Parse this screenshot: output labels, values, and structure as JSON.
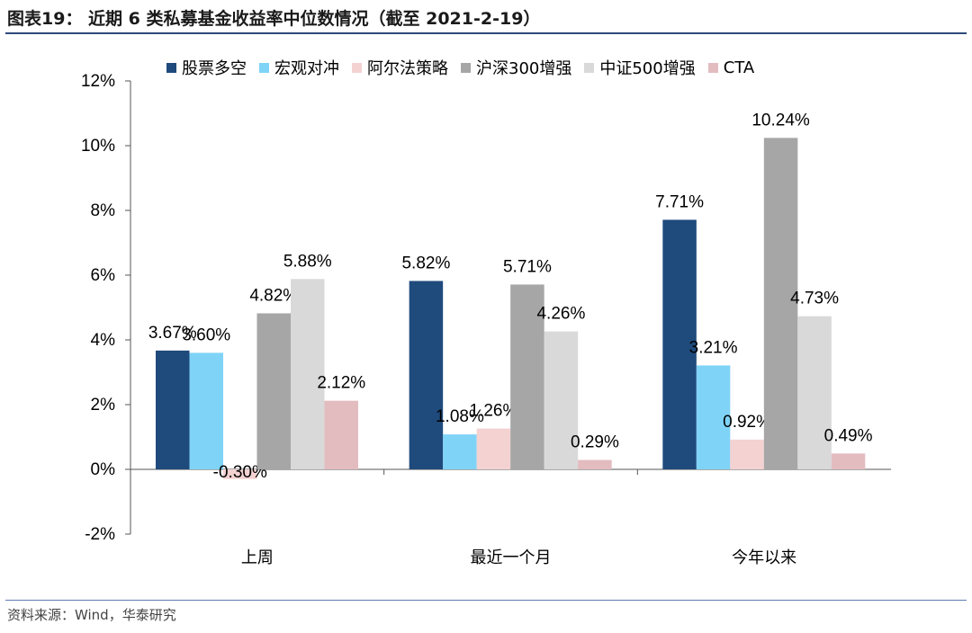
{
  "title": "图表19：  近期 6 类私募基金收益率中位数情况（截至 2021-2-19）",
  "source": "资料来源：Wind，华泰研究",
  "chart_data": {
    "type": "bar",
    "categories": [
      "上周",
      "最近一个月",
      "今年以来"
    ],
    "series": [
      {
        "name": "股票多空",
        "color": "#1f4a7c",
        "values": [
          3.67,
          5.82,
          7.71
        ],
        "labels": [
          "3.67%",
          "5.82%",
          "7.71%"
        ]
      },
      {
        "name": "宏观对冲",
        "color": "#7fd3f7",
        "values": [
          3.6,
          1.08,
          3.21
        ],
        "labels": [
          "3.60%",
          "1.08%",
          "3.21%"
        ]
      },
      {
        "name": "阿尔法策略",
        "color": "#f4d2d2",
        "values": [
          -0.3,
          1.26,
          0.92
        ],
        "labels": [
          "-0.30%",
          "1.26%",
          "0.92%"
        ]
      },
      {
        "name": "沪深300增强",
        "color": "#a6a6a6",
        "values": [
          4.82,
          5.71,
          10.24
        ],
        "labels": [
          "4.82%",
          "5.71%",
          "10.24%"
        ]
      },
      {
        "name": "中证500增强",
        "color": "#d9d9d9",
        "values": [
          5.88,
          4.26,
          4.73
        ],
        "labels": [
          "5.88%",
          "4.26%",
          "4.73%"
        ]
      },
      {
        "name": "CTA",
        "color": "#e3bcc0",
        "values": [
          2.12,
          0.29,
          0.49
        ],
        "labels": [
          "2.12%",
          "0.29%",
          "0.49%"
        ]
      }
    ],
    "ylim": [
      -2,
      12
    ],
    "yticks": [
      "-2%",
      "0%",
      "2%",
      "4%",
      "6%",
      "8%",
      "10%",
      "12%"
    ],
    "ytick_values": [
      -2,
      0,
      2,
      4,
      6,
      8,
      10,
      12
    ],
    "grid": false,
    "legend_position": "top"
  }
}
